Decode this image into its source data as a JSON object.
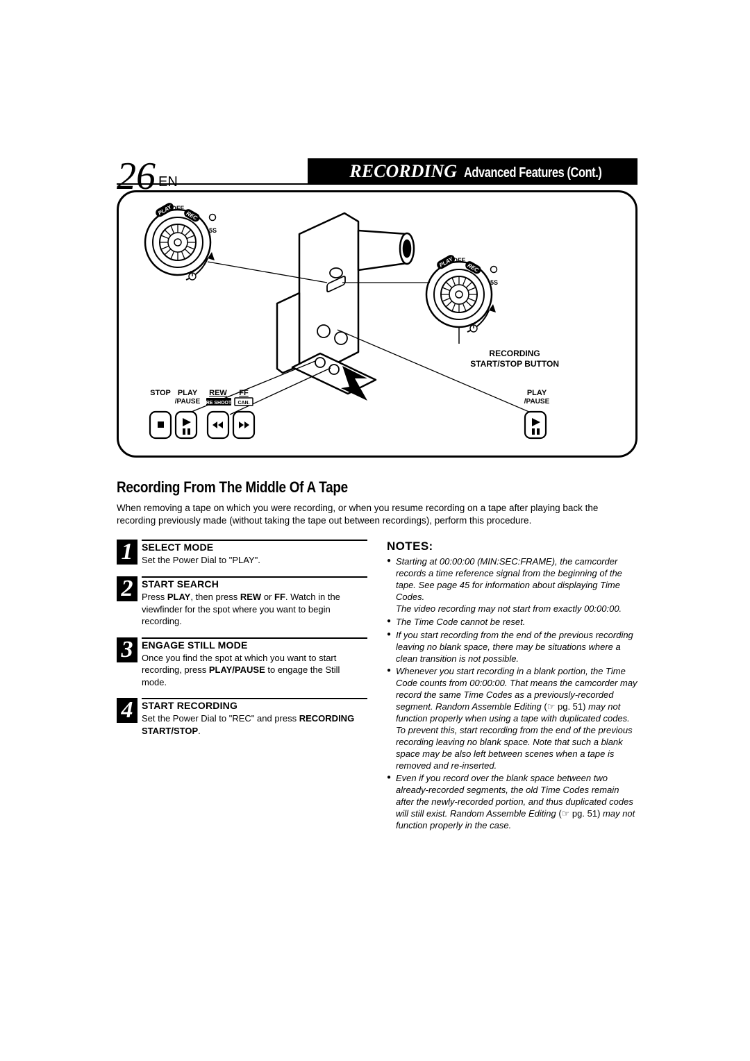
{
  "page_number": "26",
  "page_lang": "EN",
  "header_title_italic": "RECORDING",
  "header_title_cond": "Advanced Features (Cont.)",
  "illustration": {
    "dial_labels": {
      "play": "PLAY",
      "off": "OFF",
      "rec": "REC",
      "fives": "5S"
    },
    "buttons_left": {
      "stop": {
        "line1": "STOP",
        "line2": ""
      },
      "play_pause": {
        "line1": "PLAY",
        "line2": "/PAUSE"
      },
      "rew": {
        "line1": "REW",
        "line2": "RE SHOOT"
      },
      "ff": {
        "line1": "FF",
        "line2": "CAN."
      }
    },
    "button_right": {
      "line1": "PLAY",
      "line2": "/PAUSE"
    },
    "rec_button_label": {
      "line1": "RECORDING",
      "line2": "START/STOP BUTTON"
    },
    "colors": {
      "stroke": "#000000",
      "fill_white": "#ffffff",
      "fill_black": "#000000"
    }
  },
  "section_title": "Recording From The Middle Of A Tape",
  "intro": "When removing a tape on which you were recording, or when you resume recording on a tape after playing back the recording previously made (without taking the tape out between recordings), perform this procedure.",
  "steps": [
    {
      "n": "1",
      "heading": "SELECT MODE",
      "html": "Set the Power Dial to \"PLAY\"."
    },
    {
      "n": "2",
      "heading": "START SEARCH",
      "html": "Press <b>PLAY</b>, then press <b>REW</b> or <b>FF</b>. Watch in the viewfinder for the spot where you want to begin recording."
    },
    {
      "n": "3",
      "heading": "ENGAGE STILL MODE",
      "html": "Once you find the spot at which you want to start recording, press <b>PLAY/PAUSE</b> to engage the Still mode."
    },
    {
      "n": "4",
      "heading": "START RECORDING",
      "html": "Set the Power Dial to \"REC\" and press <b>RECORDING START/STOP</b>."
    }
  ],
  "notes_heading": "NOTES:",
  "notes": [
    "Starting at 00:00:00 (MIN:SEC:FRAME), the camcorder records a time reference signal from the beginning of the tape. See page 45 for information about displaying Time Codes.<br>The video recording may not start from exactly 00:00:00.",
    "The Time Code cannot be reset.",
    "If you start recording from the end of the previous recording leaving no blank space, there may be situations where a clean transition is not possible.",
    "Whenever you start recording in a blank portion, the Time Code counts from 00:00:00. That means the camcorder may record the same Time Codes as a previously-recorded segment. Random Assemble Editing <span class='nonitalic'>(☞ pg. 51)</span> may not function properly when using a tape with duplicated codes. To prevent this, start recording from the end of the previous recording leaving no blank space. Note that such a blank space may be also left between scenes when a tape is removed and re-inserted.",
    "Even if you record over the blank space between two already-recorded segments, the old Time Codes remain after the newly-recorded portion, and thus duplicated codes will still exist. Random Assemble Editing <span class='nonitalic'>(☞ pg. 51)</span> may not function properly in the case."
  ]
}
